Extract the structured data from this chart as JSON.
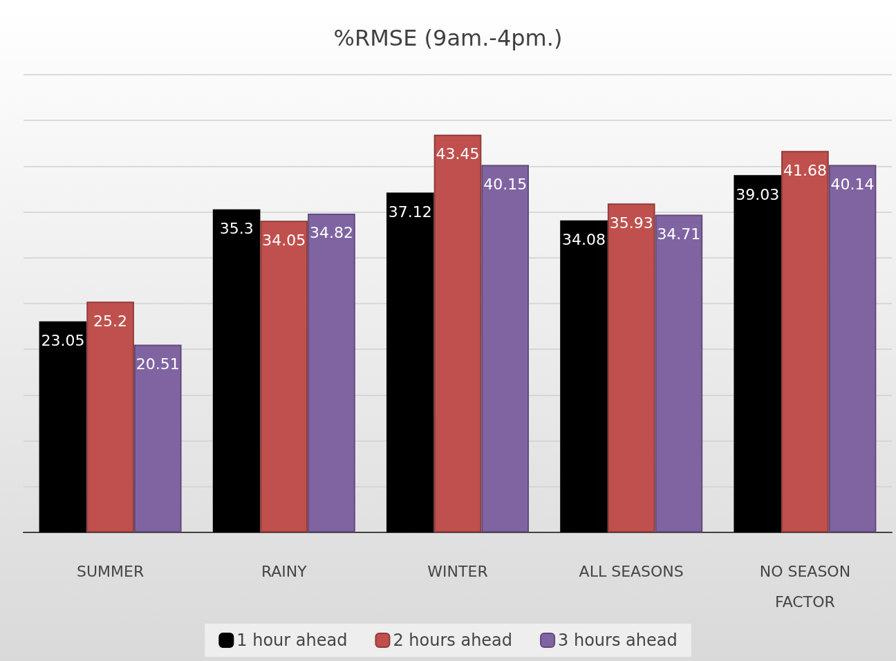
{
  "chart_data": {
    "type": "bar",
    "title": "%RMSE (9am.-4pm.)",
    "categories": [
      "SUMMER",
      "RAINY",
      "WINTER",
      "ALL SEASONS",
      "NO SEASON\nFACTOR"
    ],
    "series": [
      {
        "name": "1 hour ahead",
        "color": "#000000",
        "values": [
          23.05,
          35.3,
          37.12,
          34.08,
          39.03
        ]
      },
      {
        "name": "2 hours ahead",
        "color": "#c0504d",
        "values": [
          25.2,
          34.05,
          43.45,
          35.93,
          41.68
        ]
      },
      {
        "name": "3 hours ahead",
        "color": "#8064a2",
        "values": [
          20.51,
          34.82,
          40.15,
          34.71,
          40.14
        ]
      }
    ],
    "ylim": [
      0,
      50
    ],
    "yticks": [
      {
        "value": 0,
        "label": null
      },
      {
        "value": 5,
        "label": null
      },
      {
        "value": 10,
        "label": null
      },
      {
        "value": 15,
        "label": null
      },
      {
        "value": 20,
        "label": null
      },
      {
        "value": 25,
        "label": null
      },
      {
        "value": 30,
        "label": null
      },
      {
        "value": 35,
        "label": null
      },
      {
        "value": 40,
        "label": null
      },
      {
        "value": 45,
        "label": null
      },
      {
        "value": 50,
        "label": null
      }
    ],
    "grid": "y",
    "legend": "bottom",
    "tick_labels": "x",
    "data_labels": true
  }
}
